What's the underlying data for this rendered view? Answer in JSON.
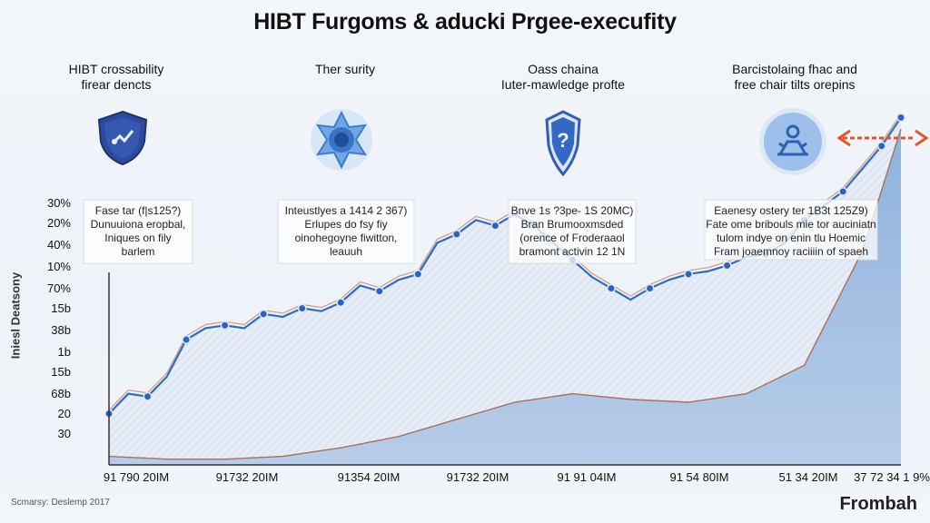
{
  "title": "HIBT Furgoms & aducki Prgee-execufity",
  "features": [
    {
      "line1": "HIBT crossability",
      "line2": "firear dencts",
      "icon": "shield-icon",
      "color": "#2f4fa0"
    },
    {
      "line1": "Ther surity",
      "line2": "",
      "icon": "network-globe-icon",
      "color": "#4d8fd8"
    },
    {
      "line1": "Oass chaina",
      "line2": "Iuter-mawledge profte",
      "icon": "shield-question-icon",
      "color": "#2f5fb8"
    },
    {
      "line1": "Barcistolaing fhac and",
      "line2": "free chair tilts orepins",
      "icon": "person-meditate-icon",
      "color": "#3a6cc0"
    }
  ],
  "y_axis_title": "Iniesl Deatsony",
  "source": "Scmarsy: Deslemp 2017",
  "brand": "Frombah",
  "chart_data": {
    "type": "area",
    "title": "HIBT Furgoms & aducki Prgee-execufity",
    "ylabel": "Iniesl Deatsony",
    "ytick_labels": [
      "30%",
      "20%",
      "40%",
      "10%",
      "70%",
      "15b",
      "38b",
      "1b",
      "15b",
      "68b",
      "20",
      "30"
    ],
    "xtick_labels": [
      "91 790 20IM",
      "91732 20IM",
      "91354 20IM",
      "91732 20IM",
      "91 91 04IM",
      "91 54 80IM",
      "51 34 20IM",
      "37 72 34 1 9%"
    ],
    "series": [
      {
        "x": [
          0,
          1,
          2,
          3,
          4,
          5,
          6,
          7,
          8,
          9,
          10,
          11,
          12,
          13,
          14,
          15,
          16,
          17,
          18,
          19,
          20,
          21,
          22,
          23,
          24,
          25,
          26,
          27,
          28,
          29,
          30,
          31,
          32,
          33,
          34,
          35,
          36,
          37,
          38,
          39,
          40,
          41
        ],
        "values": [
          18,
          25,
          24,
          31,
          44,
          48,
          49,
          48,
          53,
          52,
          55,
          54,
          57,
          63,
          61,
          65,
          67,
          78,
          81,
          86,
          84,
          88,
          84,
          78,
          72,
          66,
          62,
          58,
          62,
          65,
          67,
          68,
          70,
          73,
          74,
          78,
          86,
          91,
          96,
          104,
          112,
          122
        ]
      },
      {
        "x": [
          0,
          3,
          6,
          9,
          12,
          15,
          18,
          21,
          24,
          27,
          30,
          33,
          36,
          39,
          41
        ],
        "values": [
          3,
          2,
          2,
          3,
          6,
          10,
          16,
          22,
          25,
          23,
          22,
          25,
          35,
          75,
          118
        ]
      }
    ],
    "annotations": [
      {
        "lines": [
          "Fase tar (f|s125?)",
          "Dunuuiona eropbal,",
          "Iniques on fily",
          "barlem"
        ]
      },
      {
        "lines": [
          "Inteustlyes a 1414 2 367)",
          "Erlupes do fsy fiy",
          "oinohegoyne fiwitton,",
          "leauuh"
        ]
      },
      {
        "lines": [
          "Bnve 1s ?3pe- 1S 20MC)",
          "Bran Brumooxmsded",
          "(orence of Froderaaol",
          "bramont activin 12 1N"
        ]
      },
      {
        "lines": [
          "Eaenesy ostery ter 1B3t 125Z9)",
          "Fate ome bribouls mie tor auciniatn",
          "tulom indye on enin tlu Hoemic",
          "Fram joaemnoy raciiiin of spaeh"
        ]
      }
    ],
    "legend_placement": "none",
    "grid": false
  }
}
